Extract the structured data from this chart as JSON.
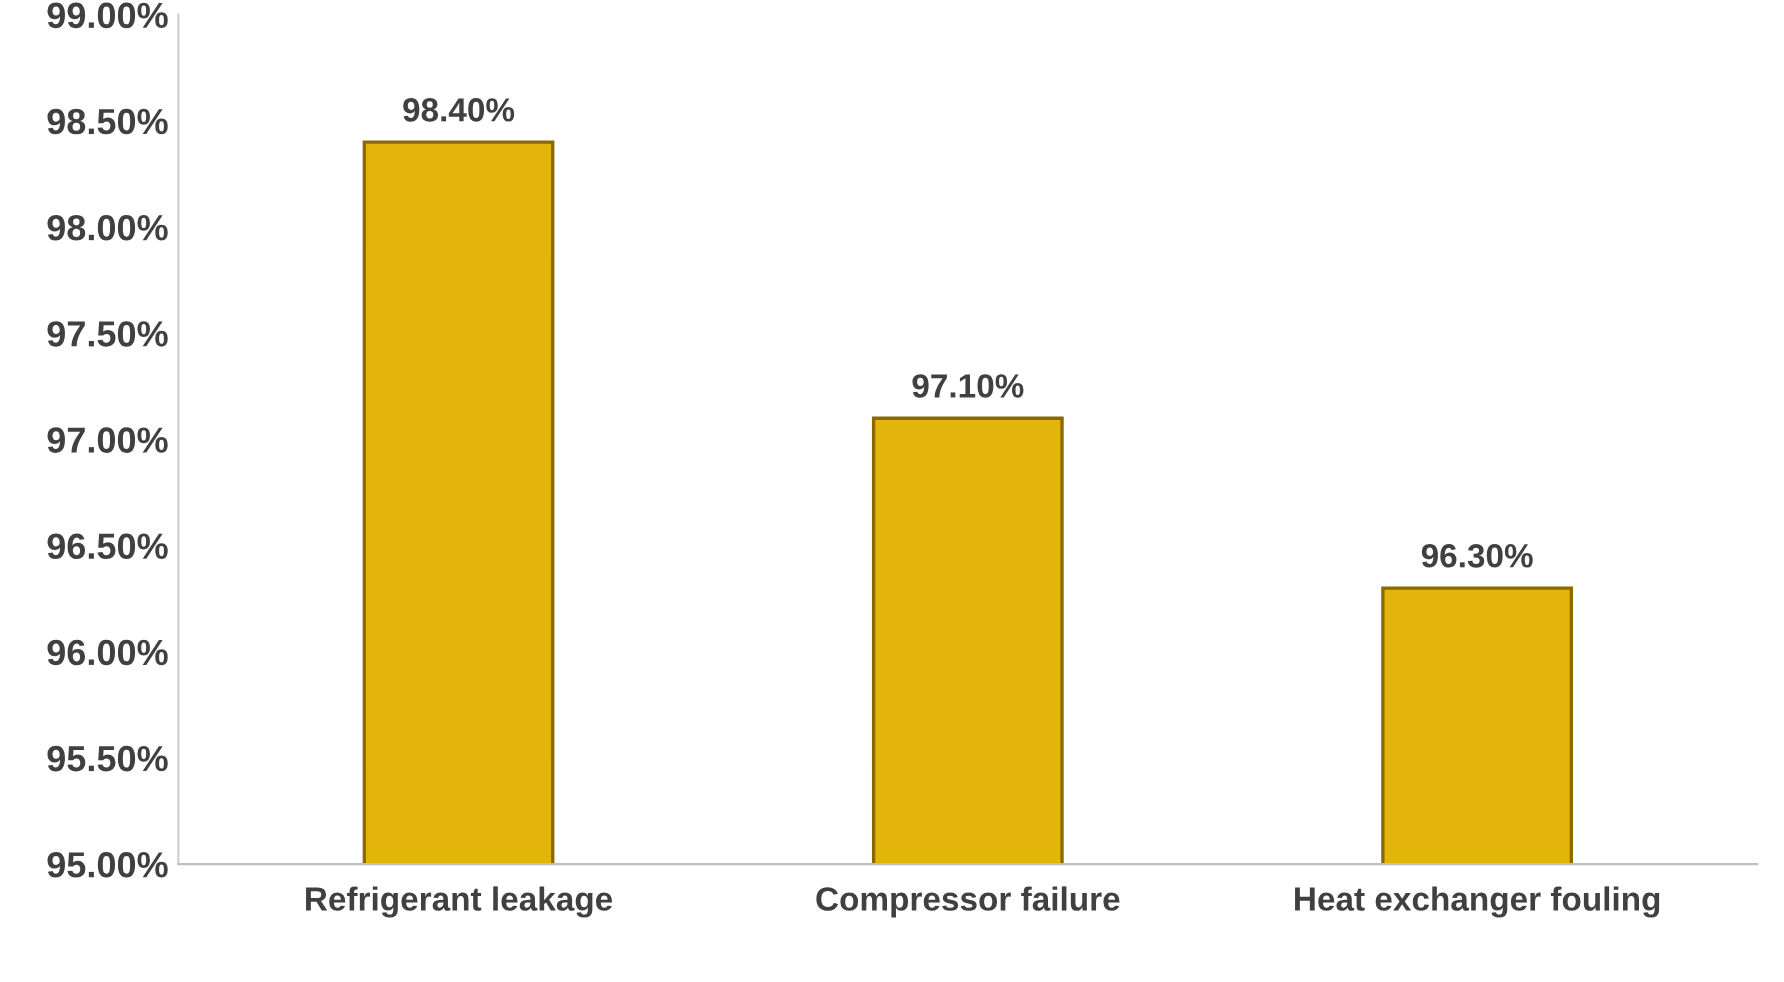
{
  "chart_data": {
    "type": "bar",
    "categories": [
      "Refrigerant leakage",
      "Compressor failure",
      "Heat exchanger fouling"
    ],
    "values": [
      98.4,
      97.1,
      96.3
    ],
    "color": "#e3b50c",
    "value_labels": [
      "98.40%",
      "97.10%",
      "96.30%"
    ],
    "ylim": [
      95,
      99
    ],
    "yticks": [
      {
        "value": 95,
        "label": "95.00%"
      },
      {
        "value": 95.5,
        "label": "95.50%"
      },
      {
        "value": 96,
        "label": "96.00%"
      },
      {
        "value": 96.5,
        "label": "96.50%"
      },
      {
        "value": 97,
        "label": "97.00%"
      },
      {
        "value": 97.5,
        "label": "97.50%"
      },
      {
        "value": 98,
        "label": "98.00%"
      },
      {
        "value": 98.5,
        "label": "98.50%"
      },
      {
        "value": 99,
        "label": "99.00%"
      }
    ],
    "grid": false,
    "legend": false
  }
}
